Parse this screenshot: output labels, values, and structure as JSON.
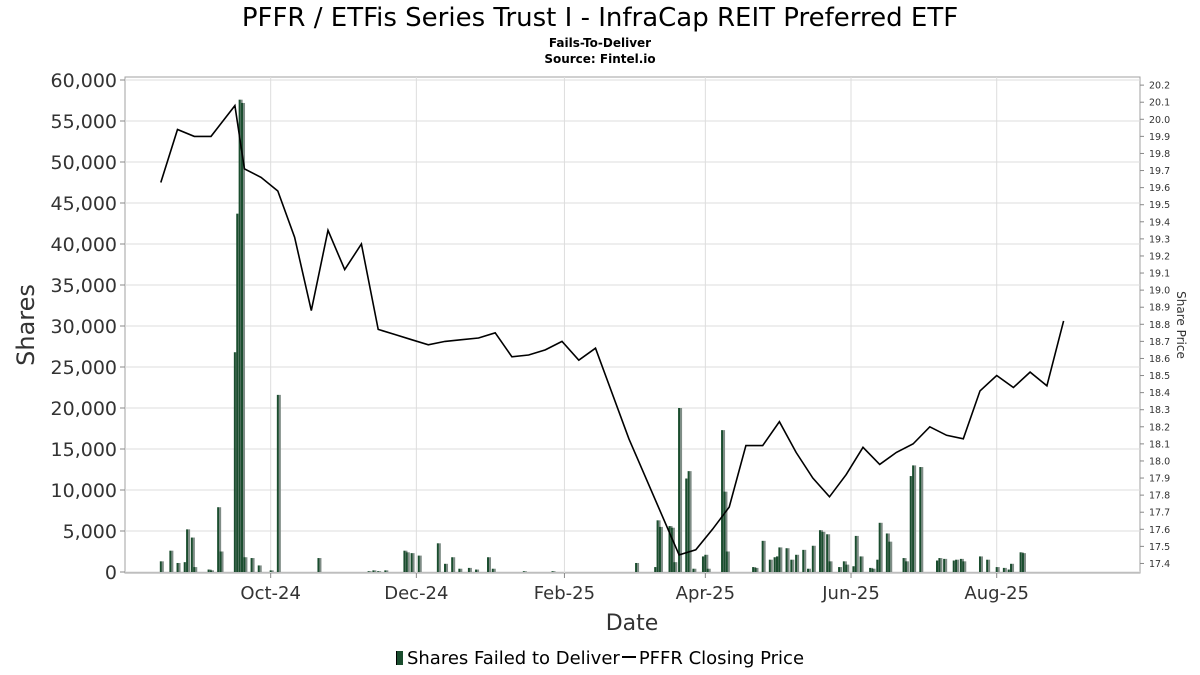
{
  "title": "PFFR / ETFis Series Trust I - InfraCap REIT Preferred ETF",
  "subtitle": "Fails-To-Deliver",
  "source": "Source: Fintel.io",
  "legend": {
    "ftd_label": "Shares Failed to Deliver",
    "price_label": "PFFR Closing Price"
  },
  "colors": {
    "bar": "#1a4d2e",
    "bar_alt": "#7f8c86",
    "line": "#000000",
    "grid": "#dddddd"
  },
  "chart_data": {
    "type": "bar",
    "title": "PFFR / ETFis Series Trust I - InfraCap REIT Preferred ETF",
    "xlabel": "Date",
    "ylabel": "Shares",
    "y2label": "Share Price",
    "xlim": [
      "2024-08-01",
      "2025-09-30"
    ],
    "ylim": [
      0,
      60000
    ],
    "y2lim": [
      17.35,
      20.23
    ],
    "yticks": [
      "0",
      "5,000",
      "10,000",
      "15,000",
      "20,000",
      "25,000",
      "30,000",
      "35,000",
      "40,000",
      "45,000",
      "50,000",
      "55,000",
      "60,000"
    ],
    "y2ticks": [
      "17.4",
      "17.5",
      "17.6",
      "17.7",
      "17.8",
      "17.9",
      "18.0",
      "18.1",
      "18.2",
      "18.3",
      "18.4",
      "18.5",
      "18.6",
      "18.7",
      "18.8",
      "18.9",
      "19.0",
      "19.1",
      "19.2",
      "19.3",
      "19.4",
      "19.5",
      "19.6",
      "19.7",
      "19.8",
      "19.9",
      "20.0",
      "20.1",
      "20.2"
    ],
    "xticks": [
      {
        "label": "Oct-24",
        "date": "2024-10-01"
      },
      {
        "label": "Dec-24",
        "date": "2024-12-01"
      },
      {
        "label": "Feb-25",
        "date": "2025-02-01"
      },
      {
        "label": "Apr-25",
        "date": "2025-04-01"
      },
      {
        "label": "Jun-25",
        "date": "2025-06-01"
      },
      {
        "label": "Aug-25",
        "date": "2025-08-01"
      }
    ],
    "grid": true,
    "legend_position": "bottom",
    "series": [
      {
        "name": "Shares Failed to Deliver",
        "type": "bar",
        "points": [
          [
            "2024-08-16",
            1300
          ],
          [
            "2024-08-20",
            2600
          ],
          [
            "2024-08-23",
            1100
          ],
          [
            "2024-08-26",
            1200
          ],
          [
            "2024-08-27",
            5200
          ],
          [
            "2024-08-29",
            4200
          ],
          [
            "2024-08-30",
            600
          ],
          [
            "2024-09-05",
            300
          ],
          [
            "2024-09-06",
            200
          ],
          [
            "2024-09-09",
            7900
          ],
          [
            "2024-09-10",
            2500
          ],
          [
            "2024-09-16",
            26800
          ],
          [
            "2024-09-17",
            43700
          ],
          [
            "2024-09-18",
            57600
          ],
          [
            "2024-09-19",
            57200
          ],
          [
            "2024-09-20",
            1800
          ],
          [
            "2024-09-23",
            1700
          ],
          [
            "2024-09-26",
            800
          ],
          [
            "2024-10-01",
            200
          ],
          [
            "2024-10-04",
            21600
          ],
          [
            "2024-10-21",
            1700
          ],
          [
            "2024-11-11",
            100
          ],
          [
            "2024-11-13",
            200
          ],
          [
            "2024-11-15",
            100
          ],
          [
            "2024-11-18",
            200
          ],
          [
            "2024-11-26",
            2600
          ],
          [
            "2024-11-27",
            2400
          ],
          [
            "2024-11-29",
            2300
          ],
          [
            "2024-12-02",
            2000
          ],
          [
            "2024-12-10",
            3500
          ],
          [
            "2024-12-13",
            1000
          ],
          [
            "2024-12-16",
            1800
          ],
          [
            "2024-12-19",
            400
          ],
          [
            "2024-12-23",
            500
          ],
          [
            "2024-12-26",
            300
          ],
          [
            "2024-12-31",
            1800
          ],
          [
            "2025-01-02",
            400
          ],
          [
            "2025-01-15",
            100
          ],
          [
            "2025-01-27",
            100
          ],
          [
            "2025-03-03",
            1100
          ],
          [
            "2025-03-11",
            600
          ],
          [
            "2025-03-12",
            6300
          ],
          [
            "2025-03-13",
            5500
          ],
          [
            "2025-03-17",
            5600
          ],
          [
            "2025-03-18",
            5400
          ],
          [
            "2025-03-19",
            1200
          ],
          [
            "2025-03-21",
            20000
          ],
          [
            "2025-03-24",
            11400
          ],
          [
            "2025-03-25",
            12300
          ],
          [
            "2025-03-27",
            400
          ],
          [
            "2025-03-31",
            1900
          ],
          [
            "2025-04-01",
            2100
          ],
          [
            "2025-04-02",
            400
          ],
          [
            "2025-04-08",
            17300
          ],
          [
            "2025-04-09",
            9800
          ],
          [
            "2025-04-10",
            2500
          ],
          [
            "2025-04-21",
            600
          ],
          [
            "2025-04-22",
            500
          ],
          [
            "2025-04-25",
            3800
          ],
          [
            "2025-04-28",
            1500
          ],
          [
            "2025-04-30",
            1800
          ],
          [
            "2025-05-01",
            1900
          ],
          [
            "2025-05-02",
            3000
          ],
          [
            "2025-05-05",
            2900
          ],
          [
            "2025-05-07",
            1500
          ],
          [
            "2025-05-09",
            2100
          ],
          [
            "2025-05-12",
            2700
          ],
          [
            "2025-05-14",
            400
          ],
          [
            "2025-05-16",
            3200
          ],
          [
            "2025-05-19",
            5100
          ],
          [
            "2025-05-20",
            4900
          ],
          [
            "2025-05-22",
            4600
          ],
          [
            "2025-05-23",
            1300
          ],
          [
            "2025-05-27",
            600
          ],
          [
            "2025-05-29",
            1300
          ],
          [
            "2025-05-30",
            900
          ],
          [
            "2025-06-02",
            700
          ],
          [
            "2025-06-03",
            4400
          ],
          [
            "2025-06-05",
            1900
          ],
          [
            "2025-06-09",
            500
          ],
          [
            "2025-06-10",
            400
          ],
          [
            "2025-06-12",
            1500
          ],
          [
            "2025-06-13",
            6000
          ],
          [
            "2025-06-16",
            4700
          ],
          [
            "2025-06-17",
            3700
          ],
          [
            "2025-06-23",
            1700
          ],
          [
            "2025-06-24",
            1300
          ],
          [
            "2025-06-26",
            11700
          ],
          [
            "2025-06-27",
            13000
          ],
          [
            "2025-06-30",
            12800
          ],
          [
            "2025-07-07",
            1400
          ],
          [
            "2025-07-08",
            1700
          ],
          [
            "2025-07-10",
            1600
          ],
          [
            "2025-07-14",
            1400
          ],
          [
            "2025-07-15",
            1500
          ],
          [
            "2025-07-17",
            1600
          ],
          [
            "2025-07-18",
            1300
          ],
          [
            "2025-07-25",
            1900
          ],
          [
            "2025-07-28",
            1500
          ],
          [
            "2025-08-01",
            600
          ],
          [
            "2025-08-04",
            500
          ],
          [
            "2025-08-06",
            300
          ],
          [
            "2025-08-07",
            1000
          ],
          [
            "2025-08-11",
            2400
          ],
          [
            "2025-08-12",
            2300
          ]
        ]
      },
      {
        "name": "PFFR Closing Price",
        "type": "line",
        "points": [
          [
            "2024-08-16",
            19.63
          ],
          [
            "2024-08-23",
            19.94
          ],
          [
            "2024-08-30",
            19.9
          ],
          [
            "2024-09-06",
            19.9
          ],
          [
            "2024-09-16",
            20.08
          ],
          [
            "2024-09-20",
            19.71
          ],
          [
            "2024-09-27",
            19.66
          ],
          [
            "2024-10-04",
            19.58
          ],
          [
            "2024-10-11",
            19.31
          ],
          [
            "2024-10-18",
            18.88
          ],
          [
            "2024-10-25",
            19.35
          ],
          [
            "2024-11-01",
            19.12
          ],
          [
            "2024-11-08",
            19.27
          ],
          [
            "2024-11-15",
            18.77
          ],
          [
            "2024-11-22",
            18.74
          ],
          [
            "2024-11-29",
            18.71
          ],
          [
            "2024-12-06",
            18.68
          ],
          [
            "2024-12-13",
            18.7
          ],
          [
            "2024-12-20",
            18.71
          ],
          [
            "2024-12-27",
            18.72
          ],
          [
            "2025-01-03",
            18.75
          ],
          [
            "2025-01-10",
            18.61
          ],
          [
            "2025-01-17",
            18.62
          ],
          [
            "2025-01-24",
            18.65
          ],
          [
            "2025-01-31",
            18.7
          ],
          [
            "2025-02-07",
            18.59
          ],
          [
            "2025-02-14",
            18.66
          ],
          [
            "2025-02-28",
            18.13
          ],
          [
            "2025-03-21",
            17.45
          ],
          [
            "2025-03-28",
            17.48
          ],
          [
            "2025-04-04",
            17.6
          ],
          [
            "2025-04-11",
            17.73
          ],
          [
            "2025-04-18",
            18.09
          ],
          [
            "2025-04-25",
            18.09
          ],
          [
            "2025-05-02",
            18.23
          ],
          [
            "2025-05-09",
            18.05
          ],
          [
            "2025-05-16",
            17.9
          ],
          [
            "2025-05-23",
            17.79
          ],
          [
            "2025-05-30",
            17.92
          ],
          [
            "2025-06-06",
            18.08
          ],
          [
            "2025-06-13",
            17.98
          ],
          [
            "2025-06-20",
            18.05
          ],
          [
            "2025-06-27",
            18.1
          ],
          [
            "2025-07-04",
            18.2
          ],
          [
            "2025-07-11",
            18.15
          ],
          [
            "2025-07-18",
            18.13
          ],
          [
            "2025-07-25",
            18.41
          ],
          [
            "2025-08-01",
            18.5
          ],
          [
            "2025-08-08",
            18.43
          ],
          [
            "2025-08-15",
            18.52
          ],
          [
            "2025-08-22",
            18.44
          ],
          [
            "2025-08-29",
            18.82
          ]
        ]
      }
    ]
  }
}
